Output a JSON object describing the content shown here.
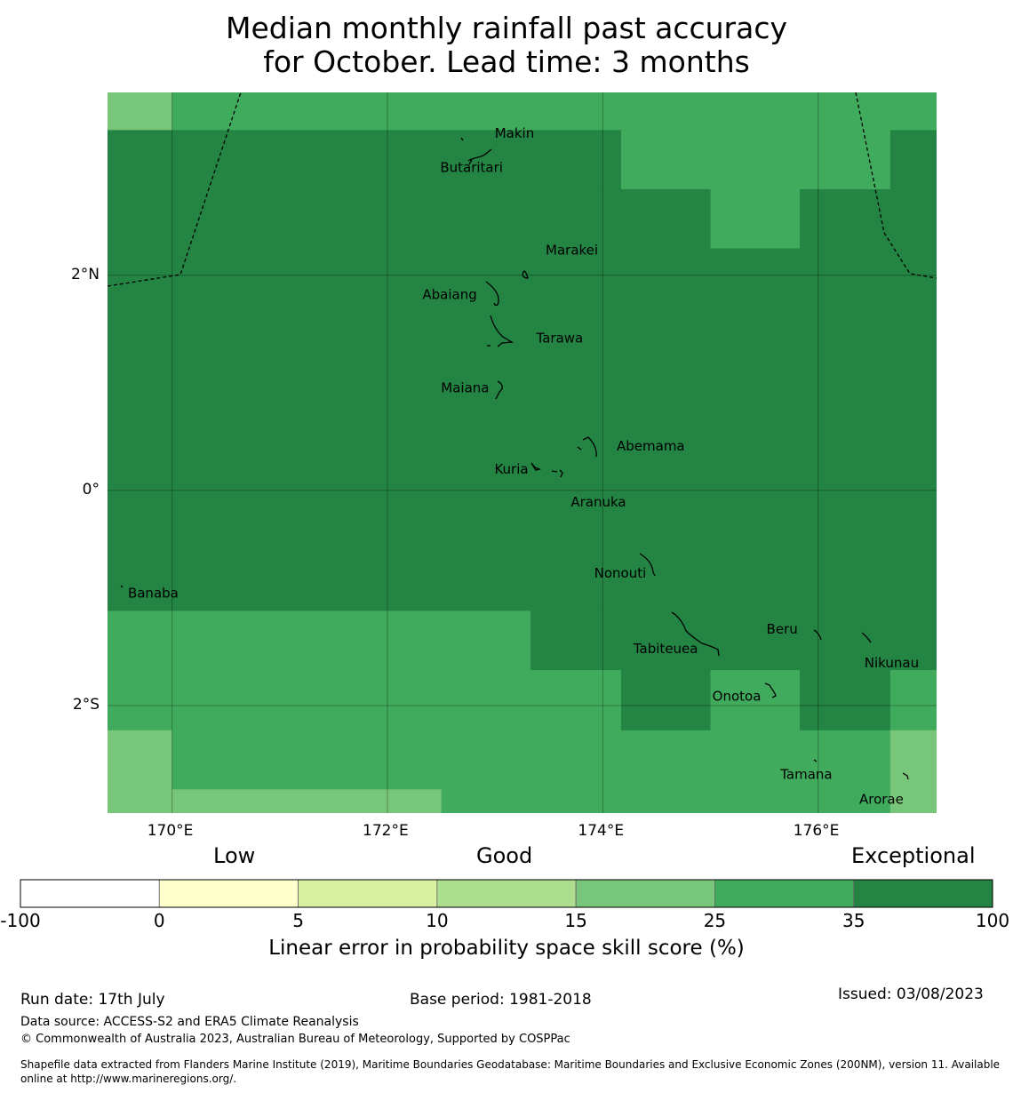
{
  "title_line1": "Median monthly rainfall past accuracy",
  "title_line2": "for October. Lead time: 3 months",
  "map": {
    "lon_range": [
      169.4,
      177.1
    ],
    "lat_range": [
      -3.0,
      3.7
    ],
    "x_ticks": [
      {
        "value": 170,
        "label": "170°E"
      },
      {
        "value": 172,
        "label": "172°E"
      },
      {
        "value": 174,
        "label": "174°E"
      },
      {
        "value": 176,
        "label": "176°E"
      }
    ],
    "y_ticks": [
      {
        "value": 2,
        "label": "2°N"
      },
      {
        "value": 0,
        "label": "0°"
      },
      {
        "value": -2,
        "label": "2°S"
      }
    ],
    "places": [
      {
        "name": "Makin",
        "lon": 172.93,
        "lat": 3.33
      },
      {
        "name": "Butaritari",
        "lon": 172.77,
        "lat": 3.0
      },
      {
        "name": "Marakei",
        "lon": 173.37,
        "lat": 2.12
      },
      {
        "name": "Abaiang",
        "lon": 172.82,
        "lat": 1.82
      },
      {
        "name": "Tarawa",
        "lon": 173.3,
        "lat": 1.45
      },
      {
        "name": "Maiana",
        "lon": 172.91,
        "lat": 0.97
      },
      {
        "name": "Abemama",
        "lon": 174.03,
        "lat": 0.41
      },
      {
        "name": "Kuria",
        "lon": 173.39,
        "lat": 0.22
      },
      {
        "name": "Aranuka",
        "lon": 173.62,
        "lat": 0.03
      },
      {
        "name": "Banaba",
        "lon": 169.54,
        "lat": -0.94
      },
      {
        "name": "Nonouti",
        "lon": 174.25,
        "lat": -0.73
      },
      {
        "name": "Tabiteuea",
        "lon": 174.78,
        "lat": -1.43
      },
      {
        "name": "Beru",
        "lon": 175.85,
        "lat": -1.24
      },
      {
        "name": "Nikunau",
        "lon": 176.38,
        "lat": -1.44
      },
      {
        "name": "Onotoa",
        "lon": 175.43,
        "lat": -1.88
      },
      {
        "name": "Tamana",
        "lon": 175.93,
        "lat": -2.56
      },
      {
        "name": "Arorae",
        "lon": 176.58,
        "lat": -2.74
      }
    ]
  },
  "skill_grid_cells": [
    {
      "lon": [
        169.4,
        170.0
      ],
      "lat": [
        3.35,
        3.7
      ],
      "class": "15-25"
    },
    {
      "lon": [
        170.0,
        177.1
      ],
      "lat": [
        3.35,
        3.7
      ],
      "class": "25-35"
    },
    {
      "lon": [
        169.4,
        174.17
      ],
      "lat": [
        2.8,
        3.35
      ],
      "class": "35-100"
    },
    {
      "lon": [
        174.17,
        176.67
      ],
      "lat": [
        2.8,
        3.35
      ],
      "class": "25-35"
    },
    {
      "lon": [
        176.67,
        177.1
      ],
      "lat": [
        2.8,
        3.35
      ],
      "class": "35-100"
    },
    {
      "lon": [
        169.4,
        175.0
      ],
      "lat": [
        2.25,
        2.8
      ],
      "class": "35-100"
    },
    {
      "lon": [
        175.0,
        175.83
      ],
      "lat": [
        2.25,
        2.8
      ],
      "class": "25-35"
    },
    {
      "lon": [
        175.83,
        177.1
      ],
      "lat": [
        2.25,
        2.8
      ],
      "class": "35-100"
    },
    {
      "lon": [
        169.4,
        177.1
      ],
      "lat": [
        -1.12,
        2.25
      ],
      "class": "35-100"
    },
    {
      "lon": [
        169.4,
        173.33
      ],
      "lat": [
        -1.67,
        -1.12
      ],
      "class": "25-35"
    },
    {
      "lon": [
        173.33,
        177.1
      ],
      "lat": [
        -1.67,
        -1.12
      ],
      "class": "35-100"
    },
    {
      "lon": [
        169.4,
        174.17
      ],
      "lat": [
        -2.23,
        -1.67
      ],
      "class": "25-35"
    },
    {
      "lon": [
        174.17,
        175.0
      ],
      "lat": [
        -2.23,
        -1.67
      ],
      "class": "35-100"
    },
    {
      "lon": [
        175.0,
        175.83
      ],
      "lat": [
        -2.23,
        -1.67
      ],
      "class": "25-35"
    },
    {
      "lon": [
        175.83,
        176.67
      ],
      "lat": [
        -2.23,
        -1.67
      ],
      "class": "35-100"
    },
    {
      "lon": [
        176.67,
        177.1
      ],
      "lat": [
        -2.23,
        -1.67
      ],
      "class": "25-35"
    },
    {
      "lon": [
        169.4,
        170.0
      ],
      "lat": [
        -2.78,
        -2.23
      ],
      "class": "15-25"
    },
    {
      "lon": [
        170.0,
        176.67
      ],
      "lat": [
        -2.78,
        -2.23
      ],
      "class": "25-35"
    },
    {
      "lon": [
        176.67,
        177.1
      ],
      "lat": [
        -2.78,
        -2.23
      ],
      "class": "15-25"
    },
    {
      "lon": [
        169.4,
        170.0
      ],
      "lat": [
        -3.0,
        -2.78
      ],
      "class": "15-25"
    },
    {
      "lon": [
        170.0,
        172.5
      ],
      "lat": [
        -3.0,
        -2.78
      ],
      "class": "15-25"
    },
    {
      "lon": [
        172.5,
        176.67
      ],
      "lat": [
        -3.0,
        -2.78
      ],
      "class": "25-35"
    },
    {
      "lon": [
        176.67,
        177.1
      ],
      "lat": [
        -3.0,
        -2.78
      ],
      "class": "15-25"
    }
  ],
  "colorbar": {
    "categories": [
      {
        "label": "Low"
      },
      {
        "label": "Good"
      },
      {
        "label": "Exceptional"
      }
    ],
    "bins": [
      {
        "from": -100,
        "to": 0,
        "color": "#ffffff"
      },
      {
        "from": 0,
        "to": 5,
        "color": "#ffffcc"
      },
      {
        "from": 5,
        "to": 10,
        "color": "#d9f0a3"
      },
      {
        "from": 10,
        "to": 15,
        "color": "#addd8e"
      },
      {
        "from": 15,
        "to": 25,
        "color": "#78c679"
      },
      {
        "from": 25,
        "to": 35,
        "color": "#41ab5d"
      },
      {
        "from": 35,
        "to": 100,
        "color": "#238443"
      }
    ],
    "tick_labels": [
      "-100",
      "0",
      "5",
      "10",
      "15",
      "25",
      "35",
      "100"
    ],
    "label": "Linear error in probability space skill score (%)"
  },
  "footer": {
    "run_date": "Run date: 17th July",
    "base_period": "Base period: 1981-2018",
    "issued": "Issued: 03/08/2023",
    "data_source": "Data source: ACCESS-S2 and ERA5 Climate Reanalysis",
    "copyright": "© Commonwealth of Australia 2023, Australian Bureau of Meteorology, Supported by COSPPac",
    "shapefile_line1": "Shapefile data extracted from Flanders Marine Institute (2019), Maritime Boundaries Geodatabase: Maritime Boundaries and Exclusive Economic Zones (200NM), version 11. Available",
    "shapefile_line2": "online at http://www.marineregions.org/."
  }
}
